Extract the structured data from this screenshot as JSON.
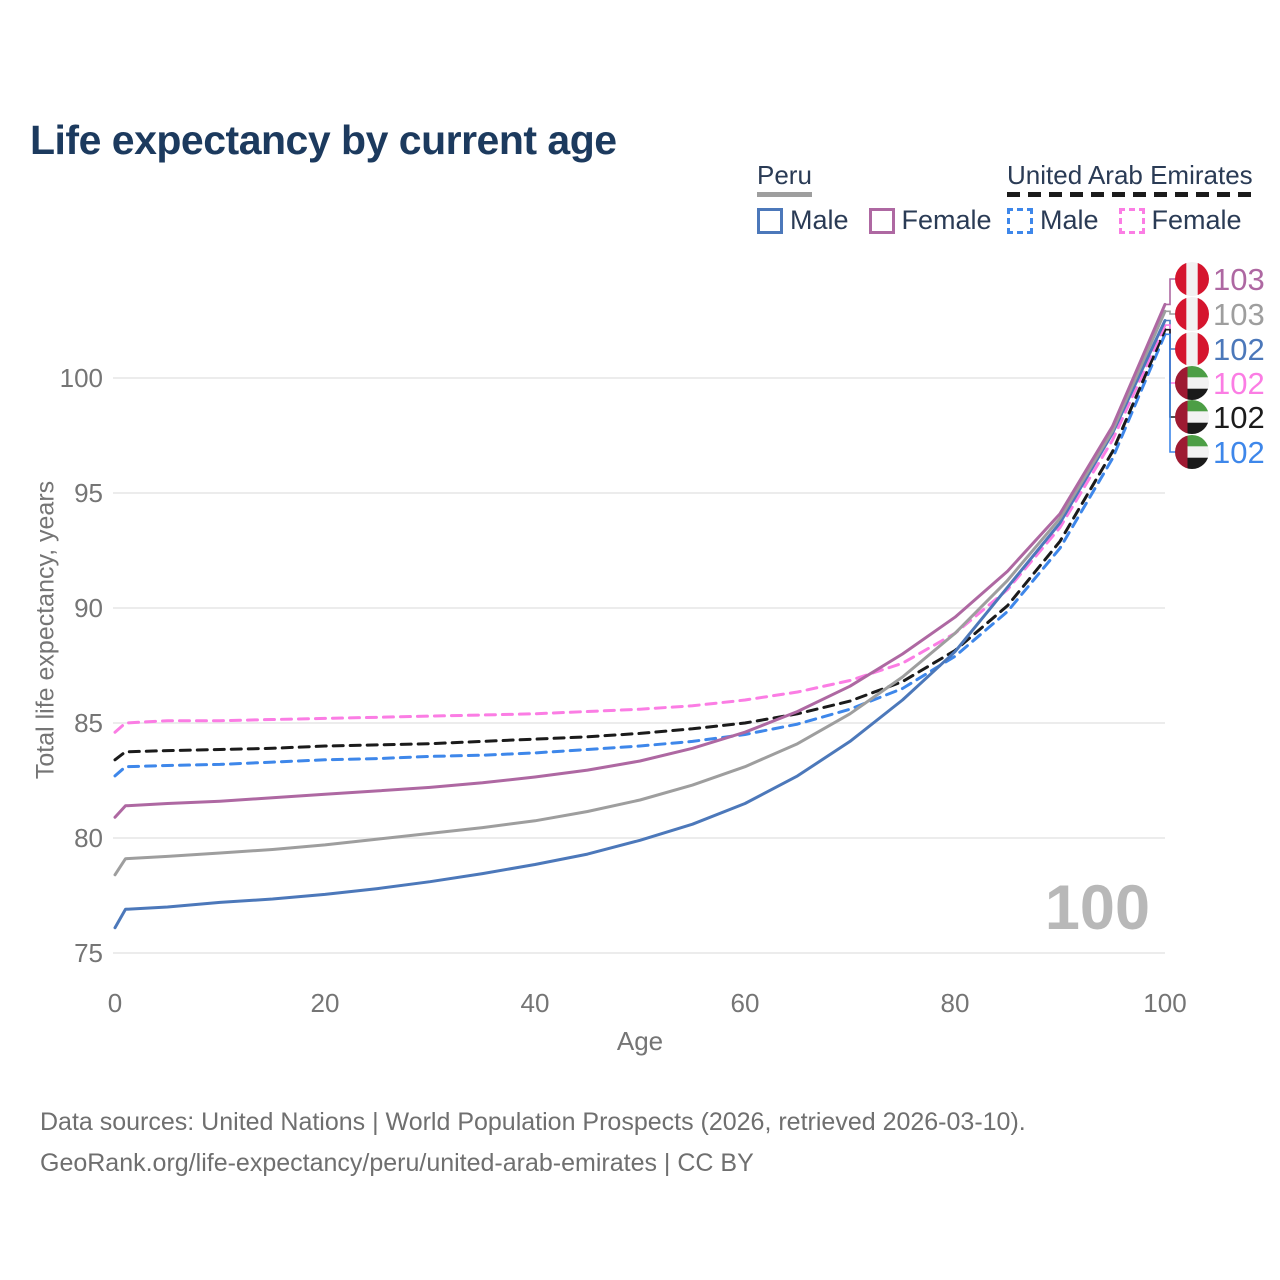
{
  "title": "Life expectancy by current age",
  "watermark": "100",
  "legend": {
    "groups": [
      {
        "label": "Peru",
        "underline_style": "solid",
        "underline_color": "#9e9e9e",
        "items": [
          {
            "label": "Male",
            "color": "#4c78ba",
            "dash": false
          },
          {
            "label": "Female",
            "color": "#ae68a2",
            "dash": false
          }
        ]
      },
      {
        "label": "United Arab Emirates",
        "underline_style": "dashed",
        "underline_color": "#1b1b1b",
        "items": [
          {
            "label": "Male",
            "color": "#3e87ea",
            "dash": true
          },
          {
            "label": "Female",
            "color": "#fb7de4",
            "dash": true
          }
        ]
      }
    ]
  },
  "colors": {
    "grid": "#ececec",
    "axis_text": "#757575",
    "title_text": "#1c3a5e",
    "legend_text": "#2a3b55",
    "watermark": "#b8b8b8",
    "footer_text": "#6f6f6f"
  },
  "flag_icons": {
    "peru": {
      "name": "peru-flag-icon",
      "red": "#d5152e",
      "white": "#f2f2f2"
    },
    "uae": {
      "name": "uae-flag-icon",
      "red": "#9e1a32",
      "green": "#4c9e45",
      "white": "#f2f2f2",
      "black": "#1a1a1a"
    }
  },
  "chart_data": {
    "type": "line",
    "title": "Life expectancy by current age",
    "xlabel": "Age",
    "ylabel": "Total life expectancy, years",
    "x_ticks": [
      0,
      20,
      40,
      60,
      80,
      100
    ],
    "y_ticks": [
      75,
      80,
      85,
      90,
      95,
      100
    ],
    "xlim": [
      0,
      100
    ],
    "ylim": [
      74.5,
      103.5
    ],
    "grid": "horizontal-only",
    "legend_position": "top-right",
    "x": [
      0,
      1,
      5,
      10,
      15,
      20,
      25,
      30,
      35,
      40,
      45,
      50,
      55,
      60,
      65,
      70,
      75,
      80,
      85,
      90,
      95,
      100
    ],
    "series": [
      {
        "id": "peru-female",
        "name": "Peru Female",
        "country": "Peru",
        "sex": "Female",
        "color": "#ae68a2",
        "line_style": "solid",
        "flag": "peru",
        "end_label": "103",
        "values": [
          80.9,
          81.4,
          81.5,
          81.6,
          81.75,
          81.9,
          82.05,
          82.2,
          82.4,
          82.65,
          82.95,
          83.35,
          83.9,
          84.6,
          85.5,
          86.6,
          88.0,
          89.6,
          91.6,
          94.1,
          97.9,
          103.2
        ]
      },
      {
        "id": "peru-total",
        "name": "Peru Both sexes",
        "country": "Peru",
        "sex": "Both",
        "color": "#9e9e9e",
        "line_style": "solid",
        "flag": "peru",
        "end_label": "103",
        "values": [
          78.4,
          79.1,
          79.2,
          79.35,
          79.5,
          79.7,
          79.95,
          80.2,
          80.45,
          80.75,
          81.15,
          81.65,
          82.3,
          83.1,
          84.1,
          85.4,
          87.0,
          88.9,
          91.2,
          93.9,
          97.7,
          102.9
        ]
      },
      {
        "id": "peru-male",
        "name": "Peru Male",
        "country": "Peru",
        "sex": "Male",
        "color": "#4c78ba",
        "line_style": "solid",
        "flag": "peru",
        "end_label": "102",
        "values": [
          76.1,
          76.9,
          77.0,
          77.2,
          77.35,
          77.55,
          77.8,
          78.1,
          78.45,
          78.85,
          79.3,
          79.9,
          80.6,
          81.5,
          82.7,
          84.2,
          86.0,
          88.1,
          90.9,
          93.7,
          97.6,
          102.5
        ]
      },
      {
        "id": "uae-female",
        "name": "United Arab Emirates Female",
        "country": "United Arab Emirates",
        "sex": "Female",
        "color": "#fb7de4",
        "line_style": "dashed",
        "flag": "uae",
        "end_label": "102",
        "values": [
          84.6,
          85.0,
          85.1,
          85.1,
          85.15,
          85.2,
          85.25,
          85.3,
          85.35,
          85.4,
          85.5,
          85.6,
          85.75,
          86.0,
          86.35,
          86.85,
          87.6,
          88.9,
          90.8,
          93.5,
          97.3,
          102.3
        ]
      },
      {
        "id": "uae-total",
        "name": "United Arab Emirates Both sexes",
        "country": "United Arab Emirates",
        "sex": "Both",
        "color": "#1b1b1b",
        "line_style": "dashed",
        "flag": "uae",
        "end_label": "102",
        "values": [
          83.4,
          83.75,
          83.8,
          83.85,
          83.9,
          84.0,
          84.05,
          84.1,
          84.2,
          84.3,
          84.4,
          84.55,
          84.75,
          85.0,
          85.4,
          85.95,
          86.8,
          88.15,
          90.1,
          92.9,
          96.8,
          102.1
        ]
      },
      {
        "id": "uae-male",
        "name": "United Arab Emirates Male",
        "country": "United Arab Emirates",
        "sex": "Male",
        "color": "#3e87ea",
        "line_style": "dashed",
        "flag": "uae",
        "end_label": "102",
        "values": [
          82.7,
          83.1,
          83.15,
          83.2,
          83.3,
          83.4,
          83.45,
          83.55,
          83.6,
          83.7,
          83.85,
          84.0,
          84.2,
          84.5,
          84.95,
          85.6,
          86.5,
          87.9,
          89.85,
          92.6,
          96.5,
          101.9
        ]
      }
    ]
  },
  "footer": {
    "line1": "Data sources: United Nations | World Population Prospects (2026, retrieved 2026-03-10).",
    "line2": "GeoRank.org/life-expectancy/peru/united-arab-emirates | CC BY"
  }
}
